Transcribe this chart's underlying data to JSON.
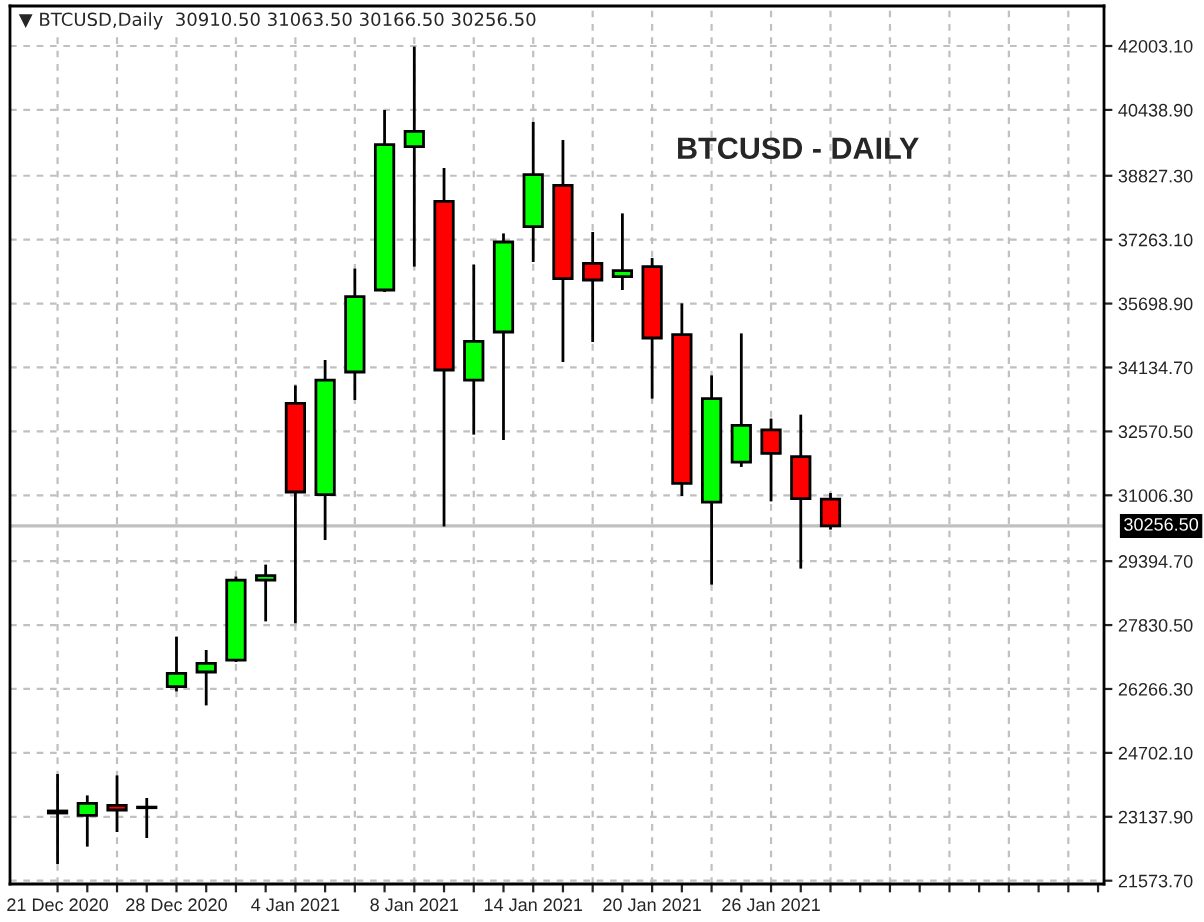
{
  "chart_data": {
    "type": "candlestick",
    "title": "BTCUSD - DAILY",
    "annotations": [
      "▼ BTCUSD,Daily  30910.50 31063.50 30166.50 30256.50"
    ],
    "categories": [
      "21 Dec 2020",
      null,
      null,
      null,
      "28 Dec 2020",
      null,
      null,
      null,
      "4 Jan 2021",
      null,
      null,
      null,
      "8 Jan 2021",
      null,
      null,
      null,
      "14 Jan 2021",
      null,
      null,
      null,
      "20 Jan 2021",
      null,
      null,
      null,
      "26 Jan 2021",
      null,
      null,
      null,
      null,
      null,
      null,
      null,
      null,
      null,
      null,
      null
    ],
    "ohlc": [
      [
        23280,
        24185,
        21982,
        23230
      ],
      [
        23172,
        23661,
        22408,
        23466
      ],
      [
        23417,
        24151,
        22766,
        23304
      ],
      [
        23360,
        23598,
        22619,
        23375
      ],
      [
        26324,
        27548,
        26207,
        26647
      ],
      [
        26682,
        27220,
        25864,
        26892
      ],
      [
        26975,
        29017,
        26926,
        28933
      ],
      [
        28930,
        29310,
        27920,
        29040
      ],
      [
        33256,
        33696,
        27871,
        31087
      ],
      [
        31023,
        34318,
        29912,
        33828
      ],
      [
        34024,
        36555,
        33339,
        35869
      ],
      [
        36031,
        40437,
        35982,
        39590
      ],
      [
        39541,
        41988,
        36604,
        39913
      ],
      [
        38200,
        39017,
        30240,
        34073
      ],
      [
        33828,
        36653,
        32492,
        34773
      ],
      [
        35003,
        37416,
        32360,
        37206
      ],
      [
        37583,
        40143,
        36716,
        38855
      ],
      [
        38591,
        39702,
        34269,
        36310
      ],
      [
        36682,
        37451,
        34758,
        36276
      ],
      [
        36359,
        37906,
        36031,
        36506
      ],
      [
        36604,
        36814,
        33373,
        34856
      ],
      [
        34939,
        35703,
        30989,
        31298
      ],
      [
        30842,
        33941,
        28821,
        33373
      ],
      [
        31820,
        34969,
        31700,
        32717
      ],
      [
        32605,
        32884,
        30857,
        32032
      ],
      [
        31954,
        32981,
        29212,
        30926
      ],
      [
        30910.5,
        31063.5,
        30166.5,
        30256.5
      ],
      null,
      null,
      null,
      null,
      null,
      null,
      null,
      null,
      null
    ],
    "colors": [
      "#ff0000",
      "#00ff00",
      "#ff0000",
      "#00ff00",
      "#00ff00",
      "#00ff00",
      "#00ff00",
      "#00ff00",
      "#ff0000",
      "#00ff00",
      "#00ff00",
      "#00ff00",
      "#00ff00",
      "#ff0000",
      "#00ff00",
      "#00ff00",
      "#00ff00",
      "#ff0000",
      "#ff0000",
      "#00ff00",
      "#ff0000",
      "#ff0000",
      "#00ff00",
      "#00ff00",
      "#ff0000",
      "#ff0000",
      "#ff0000",
      null,
      null,
      null,
      null,
      null,
      null,
      null,
      null,
      null
    ],
    "ylim": [
      21493,
      42982
    ],
    "yticks": [
      {
        "value": 42003.1,
        "label": "42003.10"
      },
      {
        "value": 40438.9,
        "label": "40438.90"
      },
      {
        "value": 38827.3,
        "label": "38827.30"
      },
      {
        "value": 37263.1,
        "label": "37263.10"
      },
      {
        "value": 35698.9,
        "label": "35698.90"
      },
      {
        "value": 34134.7,
        "label": "34134.70"
      },
      {
        "value": 32570.5,
        "label": "32570.50"
      },
      {
        "value": 31006.3,
        "label": "31006.30"
      },
      {
        "value": 29394.7,
        "label": "29394.70"
      },
      {
        "value": 27830.5,
        "label": "27830.50"
      },
      {
        "value": 26266.3,
        "label": "26266.30"
      },
      {
        "value": 24702.1,
        "label": "24702.10"
      },
      {
        "value": 23137.9,
        "label": "23137.90"
      },
      {
        "value": 21573.7,
        "label": "21573.70"
      }
    ],
    "ref_lines": [
      {
        "axis": "y",
        "value": 30256.5,
        "label": "30256.50",
        "color": "#c0c0c0"
      }
    ],
    "grid": true
  }
}
